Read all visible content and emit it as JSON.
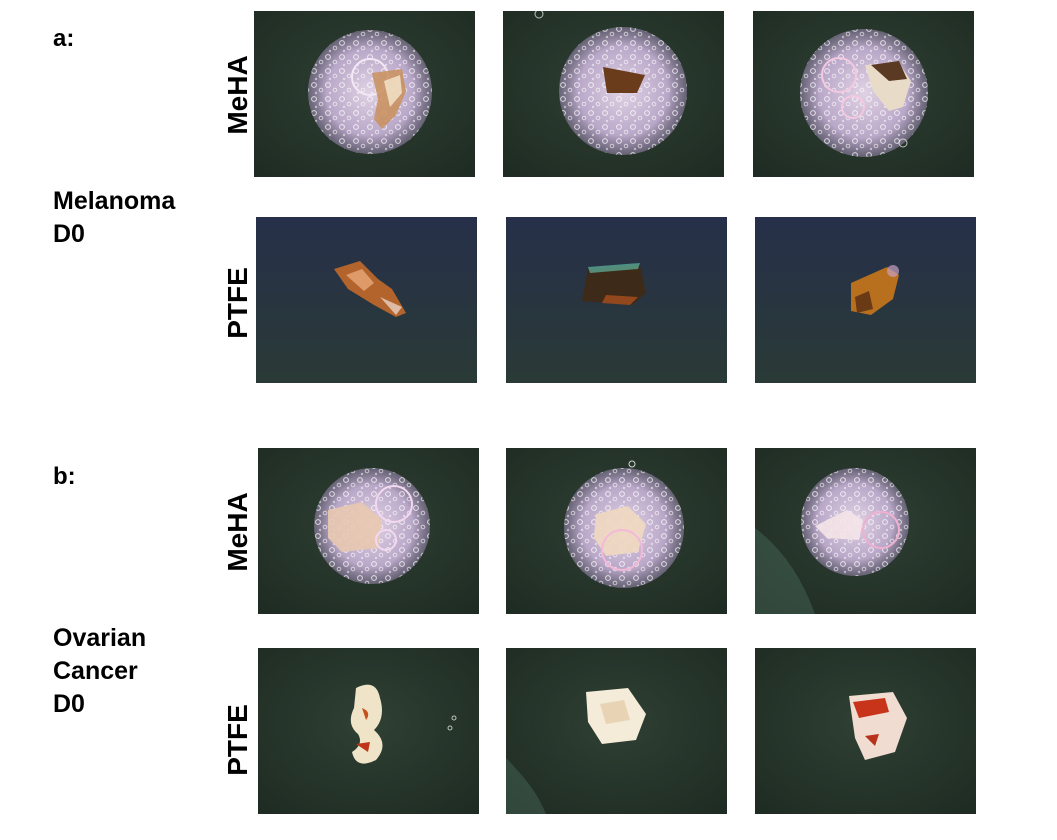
{
  "panels": [
    {
      "letter": "a:",
      "sample_lines": [
        "Melanoma",
        "D0"
      ],
      "rows": [
        {
          "label": "MeHA",
          "photos": [
            "MeHA scaffold with melanoma tissue - replicate 1",
            "MeHA scaffold with melanoma tissue - replicate 2",
            "MeHA scaffold with melanoma tissue - replicate 3"
          ]
        },
        {
          "label": "PTFE",
          "photos": [
            "PTFE with melanoma tissue - replicate 1",
            "PTFE with melanoma tissue - replicate 2",
            "PTFE with melanoma tissue - replicate 3"
          ]
        }
      ]
    },
    {
      "letter": "b:",
      "sample_lines": [
        "Ovarian",
        "Cancer",
        "D0"
      ],
      "rows": [
        {
          "label": "MeHA",
          "photos": [
            "MeHA scaffold with ovarian tissue - replicate 1",
            "MeHA scaffold with ovarian tissue - replicate 2",
            "MeHA scaffold with ovarian tissue - replicate 3"
          ]
        },
        {
          "label": "PTFE",
          "photos": [
            "PTFE with ovarian tissue - replicate 1",
            "PTFE with ovarian tissue - replicate 2",
            "PTFE with ovarian tissue - replicate 3"
          ]
        }
      ]
    }
  ],
  "colors": {
    "background_dark": "#27362b",
    "hydrogel_sphere": "#c9b8d4",
    "melanoma_tissue": "#8a4a1c",
    "ovarian_tissue": "#f0e4c8",
    "blood_spot": "#b8311a"
  }
}
